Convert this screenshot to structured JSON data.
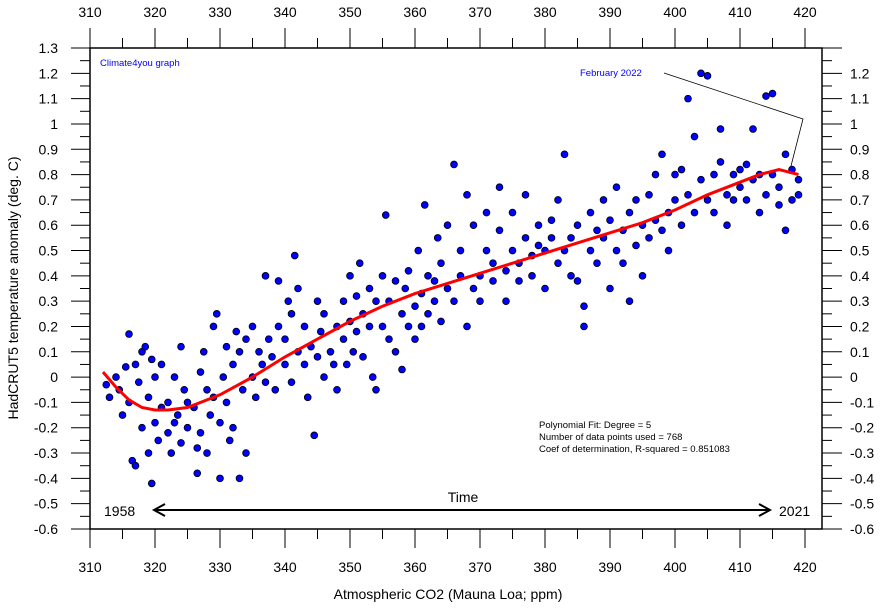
{
  "chart_data": {
    "type": "scatter",
    "xlabel": "Atmospheric CO2 (Mauna Loa; ppm)",
    "ylabel": "HadCRUT5 temperature anomaly (deg. C)",
    "xlim": [
      310,
      420
    ],
    "ylim": [
      -0.6,
      1.3
    ],
    "x_ticks": [
      310,
      320,
      330,
      340,
      350,
      360,
      370,
      380,
      390,
      400,
      410,
      420
    ],
    "y_ticks": [
      1.3,
      1.2,
      1.1,
      1,
      0.9,
      0.8,
      0.7,
      0.6,
      0.5,
      0.4,
      0.3,
      0.2,
      0.1,
      0,
      -0.1,
      -0.2,
      -0.3,
      -0.4,
      -0.5,
      -0.6
    ],
    "y_ticks_right": [
      1.2,
      1.1,
      1,
      0.9,
      0.8,
      0.7,
      0.6,
      0.5,
      0.4,
      0.3,
      0.2,
      0.1,
      0,
      -0.1,
      -0.2,
      -0.3,
      -0.4,
      -0.5,
      -0.6
    ],
    "grid": false,
    "credit": "Climate4you graph",
    "annotation": "February 2022",
    "fit_text": [
      "Polynomial Fit:   Degree = 5",
      "Number of data points used = 768",
      "Coef of determination, R-squared = 0.851083"
    ],
    "time_arrow": {
      "start_label": "1958",
      "label": "Time",
      "end_label": "2021"
    },
    "colors": {
      "points": "#0000ff",
      "fit": "#ff0000",
      "credit": "#0000ff"
    },
    "fit_curve": [
      [
        312,
        0.02
      ],
      [
        314,
        -0.04
      ],
      [
        316,
        -0.09
      ],
      [
        318,
        -0.12
      ],
      [
        320,
        -0.13
      ],
      [
        322,
        -0.13
      ],
      [
        325,
        -0.12
      ],
      [
        328,
        -0.09
      ],
      [
        330,
        -0.07
      ],
      [
        335,
        0.0
      ],
      [
        340,
        0.08
      ],
      [
        345,
        0.15
      ],
      [
        350,
        0.22
      ],
      [
        355,
        0.28
      ],
      [
        360,
        0.33
      ],
      [
        365,
        0.37
      ],
      [
        370,
        0.41
      ],
      [
        375,
        0.45
      ],
      [
        380,
        0.49
      ],
      [
        385,
        0.53
      ],
      [
        390,
        0.57
      ],
      [
        395,
        0.61
      ],
      [
        400,
        0.66
      ],
      [
        405,
        0.72
      ],
      [
        410,
        0.77
      ],
      [
        413,
        0.8
      ],
      [
        416,
        0.82
      ],
      [
        419,
        0.8
      ]
    ],
    "points": [
      [
        312.5,
        -0.03
      ],
      [
        313,
        -0.08
      ],
      [
        314,
        0.0
      ],
      [
        314.5,
        -0.05
      ],
      [
        315,
        -0.15
      ],
      [
        315.5,
        0.04
      ],
      [
        316,
        0.17
      ],
      [
        316,
        -0.1
      ],
      [
        316.5,
        -0.33
      ],
      [
        317,
        -0.35
      ],
      [
        317,
        0.05
      ],
      [
        317.5,
        -0.02
      ],
      [
        318,
        -0.2
      ],
      [
        318,
        0.1
      ],
      [
        318.5,
        0.12
      ],
      [
        319,
        -0.08
      ],
      [
        319,
        -0.3
      ],
      [
        319.5,
        -0.42
      ],
      [
        319.5,
        0.07
      ],
      [
        320,
        -0.18
      ],
      [
        320,
        0.0
      ],
      [
        320.5,
        -0.25
      ],
      [
        321,
        -0.12
      ],
      [
        321,
        0.05
      ],
      [
        322,
        -0.22
      ],
      [
        322,
        -0.1
      ],
      [
        322.5,
        -0.3
      ],
      [
        323,
        -0.18
      ],
      [
        323,
        0.0
      ],
      [
        323.5,
        -0.15
      ],
      [
        324,
        -0.26
      ],
      [
        324,
        0.12
      ],
      [
        324.5,
        -0.05
      ],
      [
        325,
        -0.2
      ],
      [
        325,
        -0.1
      ],
      [
        326,
        -0.12
      ],
      [
        326.5,
        -0.38
      ],
      [
        326.5,
        -0.28
      ],
      [
        327,
        -0.22
      ],
      [
        327,
        0.02
      ],
      [
        327.5,
        0.1
      ],
      [
        328,
        -0.05
      ],
      [
        328,
        -0.3
      ],
      [
        328.5,
        -0.15
      ],
      [
        329,
        -0.08
      ],
      [
        329,
        0.2
      ],
      [
        329.5,
        0.25
      ],
      [
        330,
        -0.18
      ],
      [
        330,
        -0.4
      ],
      [
        330.5,
        0.0
      ],
      [
        331,
        -0.1
      ],
      [
        331,
        0.12
      ],
      [
        331.5,
        -0.25
      ],
      [
        332,
        0.05
      ],
      [
        332,
        -0.2
      ],
      [
        332.5,
        0.18
      ],
      [
        333,
        -0.4
      ],
      [
        333,
        0.1
      ],
      [
        333.5,
        -0.05
      ],
      [
        334,
        -0.3
      ],
      [
        334,
        0.15
      ],
      [
        335,
        0.0
      ],
      [
        335,
        0.2
      ],
      [
        335.5,
        -0.08
      ],
      [
        336,
        0.1
      ],
      [
        336.5,
        0.05
      ],
      [
        337,
        -0.02
      ],
      [
        337,
        0.4
      ],
      [
        337.5,
        0.15
      ],
      [
        338,
        0.08
      ],
      [
        338.5,
        -0.05
      ],
      [
        339,
        0.38
      ],
      [
        339,
        0.2
      ],
      [
        340,
        0.05
      ],
      [
        340,
        0.15
      ],
      [
        340.5,
        0.3
      ],
      [
        341,
        -0.02
      ],
      [
        341,
        0.25
      ],
      [
        341.5,
        0.48
      ],
      [
        342,
        0.1
      ],
      [
        342,
        0.35
      ],
      [
        343,
        0.05
      ],
      [
        343,
        0.2
      ],
      [
        343.5,
        -0.08
      ],
      [
        344,
        0.12
      ],
      [
        344.5,
        -0.23
      ],
      [
        345,
        0.08
      ],
      [
        345,
        0.3
      ],
      [
        345.5,
        0.18
      ],
      [
        346,
        0.0
      ],
      [
        346,
        0.25
      ],
      [
        347,
        0.1
      ],
      [
        347.5,
        0.05
      ],
      [
        348,
        0.2
      ],
      [
        348,
        -0.05
      ],
      [
        349,
        0.15
      ],
      [
        349,
        0.3
      ],
      [
        349.5,
        0.05
      ],
      [
        350,
        0.22
      ],
      [
        350,
        0.4
      ],
      [
        350.5,
        0.1
      ],
      [
        351,
        0.32
      ],
      [
        351,
        0.18
      ],
      [
        351.5,
        0.45
      ],
      [
        352,
        0.25
      ],
      [
        352,
        0.08
      ],
      [
        353,
        0.2
      ],
      [
        353,
        0.35
      ],
      [
        353.5,
        0.0
      ],
      [
        354,
        0.3
      ],
      [
        354,
        -0.05
      ],
      [
        355,
        0.2
      ],
      [
        355,
        0.4
      ],
      [
        355.5,
        0.64
      ],
      [
        356,
        0.15
      ],
      [
        356,
        0.3
      ],
      [
        357,
        0.38
      ],
      [
        357,
        0.1
      ],
      [
        358,
        0.03
      ],
      [
        358,
        0.25
      ],
      [
        358.5,
        0.35
      ],
      [
        359,
        0.2
      ],
      [
        359,
        0.42
      ],
      [
        360,
        0.28
      ],
      [
        360,
        0.15
      ],
      [
        360.5,
        0.5
      ],
      [
        361,
        0.33
      ],
      [
        361,
        0.2
      ],
      [
        361.5,
        0.68
      ],
      [
        362,
        0.4
      ],
      [
        362,
        0.25
      ],
      [
        363,
        0.38
      ],
      [
        363,
        0.3
      ],
      [
        363.5,
        0.55
      ],
      [
        364,
        0.22
      ],
      [
        364,
        0.45
      ],
      [
        365,
        0.35
      ],
      [
        365,
        0.6
      ],
      [
        366,
        0.84
      ],
      [
        366,
        0.3
      ],
      [
        367,
        0.4
      ],
      [
        367,
        0.5
      ],
      [
        368,
        0.72
      ],
      [
        368,
        0.2
      ],
      [
        369,
        0.35
      ],
      [
        369,
        0.6
      ],
      [
        370,
        0.4
      ],
      [
        370,
        0.3
      ],
      [
        371,
        0.5
      ],
      [
        371,
        0.65
      ],
      [
        372,
        0.38
      ],
      [
        372,
        0.45
      ],
      [
        373,
        0.58
      ],
      [
        373,
        0.75
      ],
      [
        374,
        0.3
      ],
      [
        374,
        0.42
      ],
      [
        375,
        0.5
      ],
      [
        375,
        0.65
      ],
      [
        376,
        0.45
      ],
      [
        376,
        0.38
      ],
      [
        377,
        0.55
      ],
      [
        377,
        0.72
      ],
      [
        378,
        0.48
      ],
      [
        378,
        0.4
      ],
      [
        379,
        0.6
      ],
      [
        379,
        0.52
      ],
      [
        380,
        0.35
      ],
      [
        380,
        0.5
      ],
      [
        381,
        0.55
      ],
      [
        381,
        0.62
      ],
      [
        382,
        0.45
      ],
      [
        382,
        0.7
      ],
      [
        383,
        0.5
      ],
      [
        383,
        0.88
      ],
      [
        384,
        0.55
      ],
      [
        384,
        0.4
      ],
      [
        385,
        0.38
      ],
      [
        385,
        0.6
      ],
      [
        386,
        0.2
      ],
      [
        386,
        0.28
      ],
      [
        387,
        0.5
      ],
      [
        387,
        0.65
      ],
      [
        388,
        0.45
      ],
      [
        388,
        0.58
      ],
      [
        389,
        0.7
      ],
      [
        389,
        0.55
      ],
      [
        390,
        0.62
      ],
      [
        390,
        0.35
      ],
      [
        391,
        0.5
      ],
      [
        391,
        0.75
      ],
      [
        392,
        0.58
      ],
      [
        392,
        0.45
      ],
      [
        393,
        0.3
      ],
      [
        393,
        0.65
      ],
      [
        394,
        0.52
      ],
      [
        394,
        0.7
      ],
      [
        395,
        0.6
      ],
      [
        395,
        0.4
      ],
      [
        396,
        0.55
      ],
      [
        396,
        0.72
      ],
      [
        397,
        0.62
      ],
      [
        397,
        0.8
      ],
      [
        398,
        0.58
      ],
      [
        398,
        0.88
      ],
      [
        399,
        0.65
      ],
      [
        399,
        0.5
      ],
      [
        400,
        0.7
      ],
      [
        400,
        0.8
      ],
      [
        401,
        0.6
      ],
      [
        401,
        0.82
      ],
      [
        402,
        1.1
      ],
      [
        402,
        0.72
      ],
      [
        403,
        0.95
      ],
      [
        403,
        0.65
      ],
      [
        404,
        1.2
      ],
      [
        404,
        0.78
      ],
      [
        405,
        1.19
      ],
      [
        405,
        0.7
      ],
      [
        406,
        0.8
      ],
      [
        406,
        0.65
      ],
      [
        407,
        0.98
      ],
      [
        407,
        0.85
      ],
      [
        408,
        0.72
      ],
      [
        408,
        0.6
      ],
      [
        409,
        0.8
      ],
      [
        409,
        0.7
      ],
      [
        410,
        0.82
      ],
      [
        410,
        0.75
      ],
      [
        411,
        0.7
      ],
      [
        411,
        0.84
      ],
      [
        412,
        0.98
      ],
      [
        412,
        0.78
      ],
      [
        413,
        0.8
      ],
      [
        413,
        0.65
      ],
      [
        414,
        1.11
      ],
      [
        414,
        0.72
      ],
      [
        415,
        1.12
      ],
      [
        415,
        0.8
      ],
      [
        416,
        0.68
      ],
      [
        416,
        0.75
      ],
      [
        417,
        0.88
      ],
      [
        417,
        0.58
      ],
      [
        418,
        0.82
      ],
      [
        418,
        0.7
      ],
      [
        419,
        0.78
      ],
      [
        419,
        0.72
      ]
    ]
  }
}
